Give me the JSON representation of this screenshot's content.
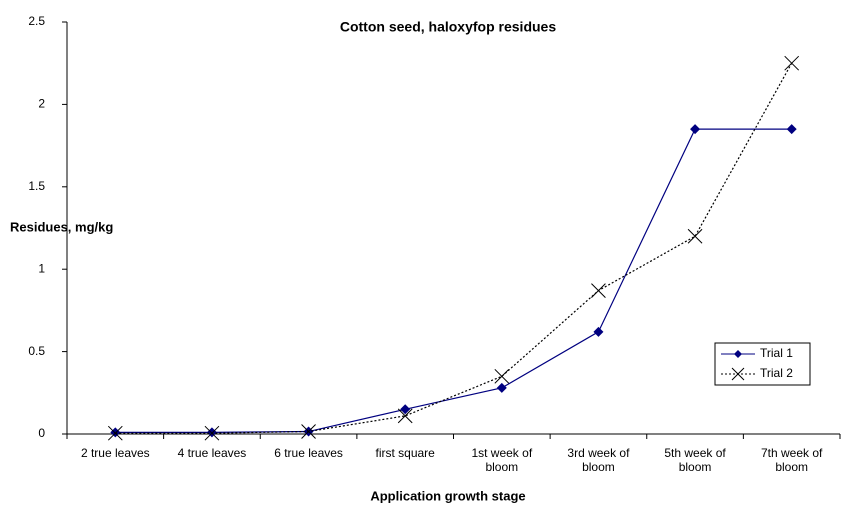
{
  "chart_data": {
    "type": "line",
    "title": "Cotton seed, haloxyfop residues",
    "x_label": "Application growth stage",
    "y_label": "Residues, mg/kg",
    "categories": [
      "2 true leaves",
      "4 true leaves",
      "6 true leaves",
      "first square",
      "1st week of bloom",
      "3rd week of bloom",
      "5th week of bloom",
      "7th week of bloom"
    ],
    "series": [
      {
        "name": "Trial 1",
        "color": "#000080",
        "marker": "diamond",
        "dash": "solid",
        "values": [
          0.01,
          0.01,
          0.015,
          0.15,
          0.28,
          0.62,
          1.85,
          1.85
        ]
      },
      {
        "name": "Trial 2",
        "color": "#000000",
        "marker": "x",
        "dash": "dotted",
        "values": [
          0.005,
          0.005,
          0.015,
          0.11,
          0.35,
          0.87,
          1.2,
          2.25
        ]
      }
    ],
    "ylim": [
      0,
      2.5
    ],
    "yticks": [
      0,
      0.5,
      1,
      1.5,
      2,
      2.5
    ],
    "grid": false,
    "legend": "right"
  }
}
